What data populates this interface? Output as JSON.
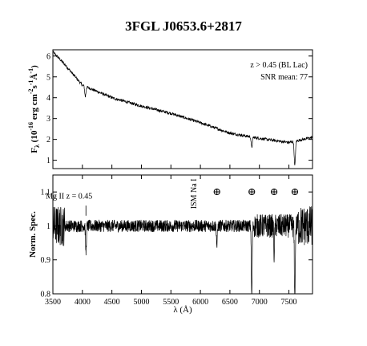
{
  "title": "3FGL J0653.6+2817",
  "chart_data": [
    {
      "type": "line",
      "panel": "top",
      "ylabel_parts": {
        "main": "F",
        "sub": "λ",
        "rest_open": " (10",
        "exp": "-16",
        "rest_mid": " erg cm",
        "exp2": "-2",
        "rest_mid2": "s",
        "exp3": "-1",
        "rest_mid3": "Å",
        "exp4": "-1",
        "close": ")"
      },
      "xlim": [
        3500,
        7900
      ],
      "ylim": [
        0.6,
        6.3
      ],
      "yticks": [
        "1",
        "2",
        "3",
        "4",
        "5",
        "6"
      ],
      "annotations": {
        "redshift": "z > 0.45 (BL Lac)",
        "snr": "SNR mean: 77"
      },
      "continuum_points": [
        [
          3500,
          6.2
        ],
        [
          3700,
          5.6
        ],
        [
          4000,
          4.6
        ],
        [
          4500,
          4.0
        ],
        [
          5000,
          3.6
        ],
        [
          5500,
          3.25
        ],
        [
          6000,
          2.8
        ],
        [
          6500,
          2.3
        ],
        [
          7000,
          2.05
        ],
        [
          7500,
          1.85
        ],
        [
          7900,
          2.1
        ]
      ],
      "absorption_features": [
        {
          "x": 4050,
          "depth": 0.5
        },
        {
          "x": 6870,
          "depth": 0.5
        },
        {
          "x": 7600,
          "depth": 1.2
        }
      ]
    },
    {
      "type": "line",
      "panel": "bottom",
      "ylabel": "Norm. Spec.",
      "xlabel": "λ (Å)",
      "xlim": [
        3500,
        7900
      ],
      "ylim": [
        0.8,
        1.15
      ],
      "xticks": [
        "3500",
        "4000",
        "4500",
        "5000",
        "5500",
        "6000",
        "6500",
        "7000",
        "7500"
      ],
      "yticks": [
        "0.8",
        "0.9",
        "1",
        "1.1"
      ],
      "line_labels": {
        "mgii": "Mg II z = 0.45",
        "ism": "ISM Na I"
      },
      "telluric_symbol": "⊕",
      "telluric_x": [
        6280,
        6870,
        7250,
        7600
      ],
      "mgii_x": 4060,
      "ism_x": 5890,
      "absorption_features": [
        {
          "x": 4060,
          "depth": 0.08
        },
        {
          "x": 6280,
          "depth": 0.06
        },
        {
          "x": 6870,
          "depth": 0.22
        },
        {
          "x": 7250,
          "depth": 0.08
        },
        {
          "x": 7600,
          "depth": 0.25
        }
      ]
    }
  ]
}
